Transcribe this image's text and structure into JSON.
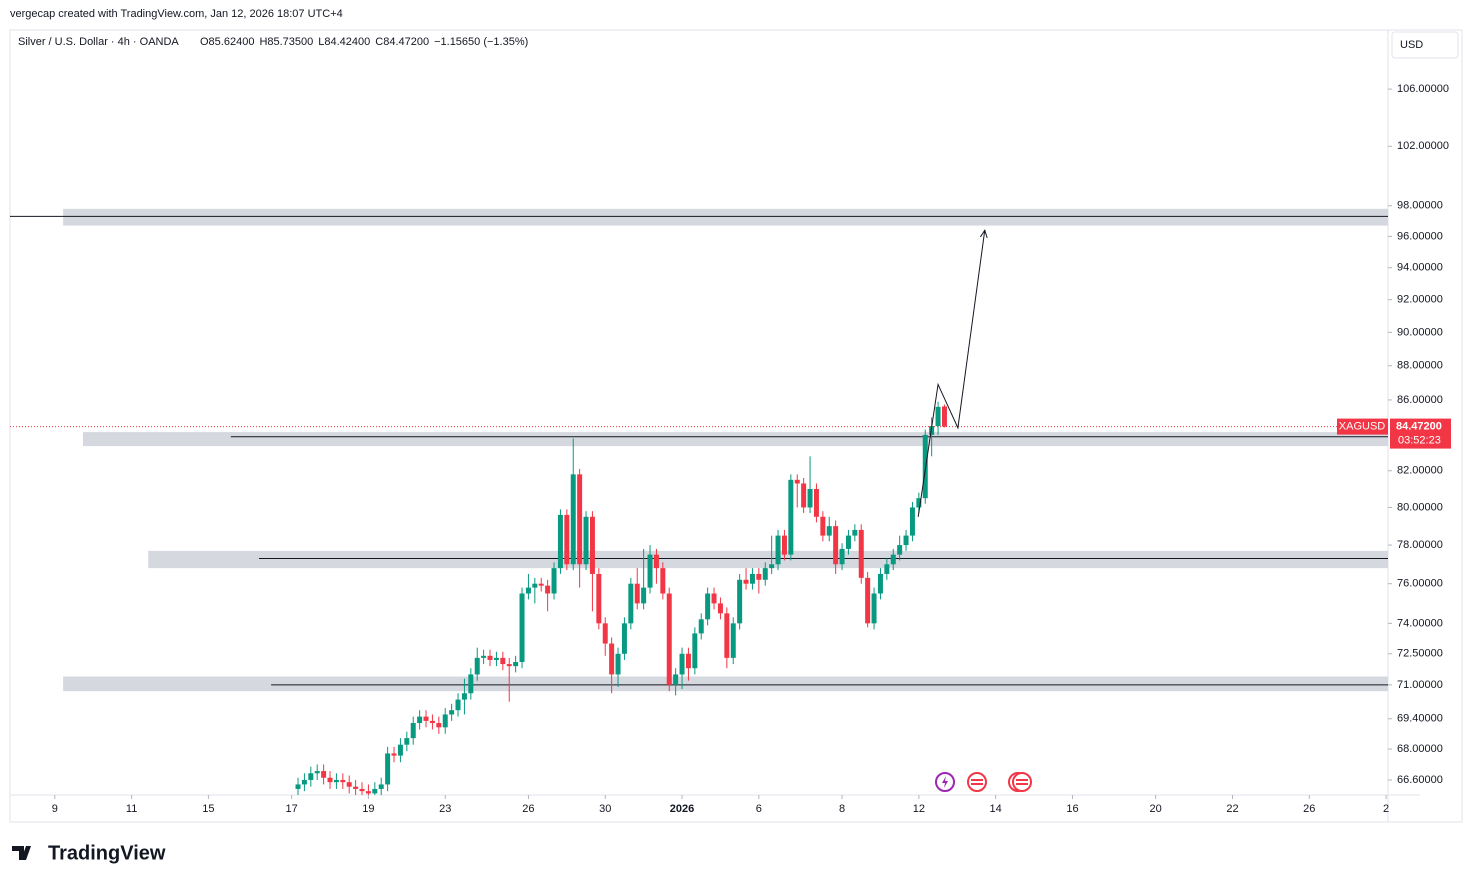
{
  "header": {
    "credit": "vergecap created with TradingView.com, Jan 12, 2026 18:07 UTC+4",
    "logo": "TradingView"
  },
  "chart_data": {
    "type": "candlestick",
    "title": "Silver / U.S. Dollar · 4h · OANDA",
    "ohlc_legend": [
      "O85.62400",
      "H85.73500",
      "L84.42400",
      "C84.47200",
      "−1.15650 (−1.35%)"
    ],
    "currency": "USD",
    "log_scale": true,
    "up_color": "#089981",
    "down_color": "#f23645",
    "ylim": [
      65.93,
      110.3
    ],
    "yticks": [
      {
        "value": 106,
        "label": "106.00000"
      },
      {
        "value": 102,
        "label": "102.00000"
      },
      {
        "value": 98,
        "label": "98.00000"
      },
      {
        "value": 96,
        "label": "96.00000"
      },
      {
        "value": 94,
        "label": "94.00000"
      },
      {
        "value": 92,
        "label": "92.00000"
      },
      {
        "value": 90,
        "label": "90.00000"
      },
      {
        "value": 88,
        "label": "88.00000"
      },
      {
        "value": 86,
        "label": "86.00000"
      },
      {
        "value": 82,
        "label": "82.00000"
      },
      {
        "value": 80,
        "label": "80.00000"
      },
      {
        "value": 78,
        "label": "78.00000"
      },
      {
        "value": 76,
        "label": "76.00000"
      },
      {
        "value": 74,
        "label": "74.00000"
      },
      {
        "value": 72.5,
        "label": "72.50000"
      },
      {
        "value": 71,
        "label": "71.00000"
      },
      {
        "value": 69.4,
        "label": "69.40000"
      },
      {
        "value": 68,
        "label": "68.00000"
      },
      {
        "value": 66.6,
        "label": "66.60000"
      }
    ],
    "xlim": [
      -45,
      170.3
    ],
    "xticks": [
      {
        "value": -38,
        "label": "9"
      },
      {
        "value": -26,
        "label": "11"
      },
      {
        "value": -14,
        "label": "15"
      },
      {
        "value": -1,
        "label": "17"
      },
      {
        "value": 11,
        "label": "19"
      },
      {
        "value": 23,
        "label": "23"
      },
      {
        "value": 36,
        "label": "26"
      },
      {
        "value": 48,
        "label": "30"
      },
      {
        "value": 60,
        "label": "2026"
      },
      {
        "value": 72,
        "label": "6"
      },
      {
        "value": 85,
        "label": "8"
      },
      {
        "value": 97,
        "label": "12"
      },
      {
        "value": 109,
        "label": "14"
      },
      {
        "value": 121,
        "label": "16"
      },
      {
        "value": 134,
        "label": "20"
      },
      {
        "value": 146,
        "label": "22"
      },
      {
        "value": 158,
        "label": "26"
      },
      {
        "value": 170,
        "label": "2"
      }
    ],
    "open": [
      66.2,
      66.4,
      66.6,
      66.9,
      67.0,
      66.7,
      66.5,
      66.6,
      66.5,
      66.3,
      66.2,
      66.1,
      66.0,
      66.2,
      66.4,
      67.8,
      67.7,
      68.2,
      68.5,
      69.2,
      69.5,
      69.3,
      69.2,
      69.0,
      69.6,
      69.8,
      70.3,
      70.6,
      71.5,
      72.3,
      72.4,
      72.2,
      72.3,
      72.0,
      71.9,
      72.1,
      75.5,
      75.8,
      76.0,
      75.9,
      75.5,
      76.8,
      79.6,
      77.0,
      81.8,
      77.0,
      79.5,
      76.5,
      74.0,
      73.0,
      71.5,
      72.5,
      74.0,
      76.0,
      75.0,
      75.8,
      77.5,
      76.8,
      75.5,
      71.0,
      71.5,
      72.5,
      71.8,
      73.5,
      74.2,
      75.5,
      75.0,
      74.5,
      72.3,
      74.0,
      76.2,
      76.0,
      76.5,
      76.2,
      76.8,
      77.0,
      78.5,
      77.5,
      81.5,
      81.3,
      80.0,
      81.0,
      79.5,
      78.5,
      79.0,
      77.0,
      77.8,
      78.5,
      78.8,
      76.3,
      74.0,
      75.5,
      76.5,
      77.0,
      77.5,
      78.0,
      78.5,
      80.0,
      80.5,
      84.0,
      84.5,
      85.624
    ],
    "high": [
      66.7,
      66.9,
      67.2,
      67.3,
      67.3,
      67.0,
      66.9,
      66.9,
      66.8,
      66.6,
      66.5,
      66.4,
      66.5,
      66.7,
      68.1,
      68.1,
      68.5,
      68.8,
      69.5,
      69.8,
      69.8,
      69.6,
      69.5,
      69.9,
      70.1,
      70.6,
      71.3,
      71.8,
      72.8,
      72.7,
      72.7,
      72.6,
      72.6,
      72.3,
      72.4,
      75.8,
      76.5,
      76.3,
      76.3,
      76.2,
      77.1,
      79.9,
      79.9,
      83.8,
      82.1,
      79.8,
      79.8,
      76.8,
      74.3,
      73.3,
      72.8,
      74.3,
      76.3,
      76.8,
      77.8,
      78.0,
      77.8,
      77.1,
      75.8,
      71.8,
      72.8,
      72.8,
      73.8,
      74.5,
      75.8,
      75.8,
      75.3,
      74.8,
      74.3,
      76.5,
      76.8,
      76.8,
      76.8,
      77.1,
      78.5,
      78.8,
      78.8,
      81.8,
      81.8,
      81.6,
      82.8,
      81.3,
      79.8,
      79.5,
      79.3,
      78.1,
      78.8,
      79.1,
      79.1,
      76.6,
      75.8,
      76.8,
      77.3,
      77.8,
      78.5,
      78.8,
      80.3,
      80.8,
      84.3,
      85.0,
      85.9,
      85.735
    ],
    "low": [
      65.9,
      66.1,
      66.3,
      66.6,
      66.4,
      66.2,
      66.2,
      66.2,
      66.0,
      65.9,
      65.8,
      65.7,
      65.7,
      65.9,
      66.1,
      67.4,
      67.4,
      67.9,
      68.2,
      68.9,
      69.0,
      68.9,
      68.7,
      68.7,
      69.3,
      69.5,
      69.6,
      70.3,
      71.2,
      72.0,
      71.9,
      71.9,
      71.7,
      70.2,
      71.6,
      71.8,
      75.2,
      75.0,
      75.6,
      74.6,
      75.2,
      76.5,
      76.7,
      76.7,
      75.8,
      76.7,
      74.6,
      73.7,
      72.4,
      70.6,
      70.9,
      72.2,
      73.7,
      74.7,
      74.7,
      75.5,
      76.0,
      75.2,
      70.7,
      70.5,
      70.8,
      71.2,
      71.5,
      73.2,
      73.9,
      74.7,
      74.2,
      71.8,
      72.0,
      73.7,
      75.7,
      75.7,
      75.5,
      75.9,
      76.5,
      76.7,
      77.2,
      77.2,
      80.0,
      79.7,
      79.7,
      79.2,
      78.2,
      78.2,
      76.5,
      76.7,
      77.5,
      78.2,
      76.0,
      73.8,
      73.7,
      75.2,
      76.2,
      76.7,
      77.2,
      77.7,
      78.2,
      79.7,
      80.2,
      82.8,
      84.0,
      84.424
    ],
    "close": [
      66.4,
      66.6,
      66.9,
      67.0,
      66.7,
      66.5,
      66.6,
      66.5,
      66.3,
      66.2,
      66.1,
      66.0,
      66.2,
      66.4,
      67.8,
      67.7,
      68.2,
      68.5,
      69.2,
      69.5,
      69.3,
      69.2,
      69.0,
      69.6,
      69.8,
      70.3,
      70.6,
      71.5,
      72.3,
      72.4,
      72.2,
      72.3,
      72.0,
      71.9,
      72.1,
      75.5,
      75.8,
      76.0,
      75.9,
      75.5,
      76.8,
      79.6,
      77.0,
      81.8,
      77.0,
      79.5,
      76.5,
      74.0,
      73.0,
      71.5,
      72.5,
      74.0,
      76.0,
      75.0,
      75.8,
      77.5,
      76.8,
      75.5,
      71.0,
      71.5,
      72.5,
      71.8,
      73.5,
      74.2,
      75.5,
      75.0,
      74.5,
      72.3,
      74.0,
      76.2,
      76.0,
      76.5,
      76.2,
      76.8,
      77.0,
      78.5,
      77.5,
      81.5,
      81.3,
      80.0,
      81.0,
      79.5,
      78.5,
      79.0,
      77.0,
      77.8,
      78.5,
      78.8,
      76.3,
      74.0,
      75.5,
      76.5,
      77.0,
      77.5,
      78.0,
      78.5,
      80.0,
      80.5,
      84.0,
      84.5,
      85.6,
      84.472
    ],
    "zones": [
      {
        "low": 96.7,
        "high": 97.8,
        "start": -36.7,
        "level": 97.3,
        "level_start": -45
      },
      {
        "low": 83.37,
        "high": 84.16,
        "start": -33.6,
        "level": 83.9,
        "level_start": -10.5
      },
      {
        "low": 76.8,
        "high": 77.7,
        "start": -23.4,
        "level": 77.3,
        "level_start": -6.1
      },
      {
        "low": 70.7,
        "high": 71.4,
        "start": -36.7,
        "level": 71.0,
        "level_start": -4.2
      }
    ],
    "projection": {
      "x": [
        96.9,
        100,
        103.1,
        107.3
      ],
      "y": [
        79.5,
        86.9,
        84.4,
        96.4
      ]
    },
    "last_price": {
      "symbol": "XAGUSD",
      "value": 84.472,
      "label": "84.47200",
      "countdown": "03:52:23"
    }
  }
}
